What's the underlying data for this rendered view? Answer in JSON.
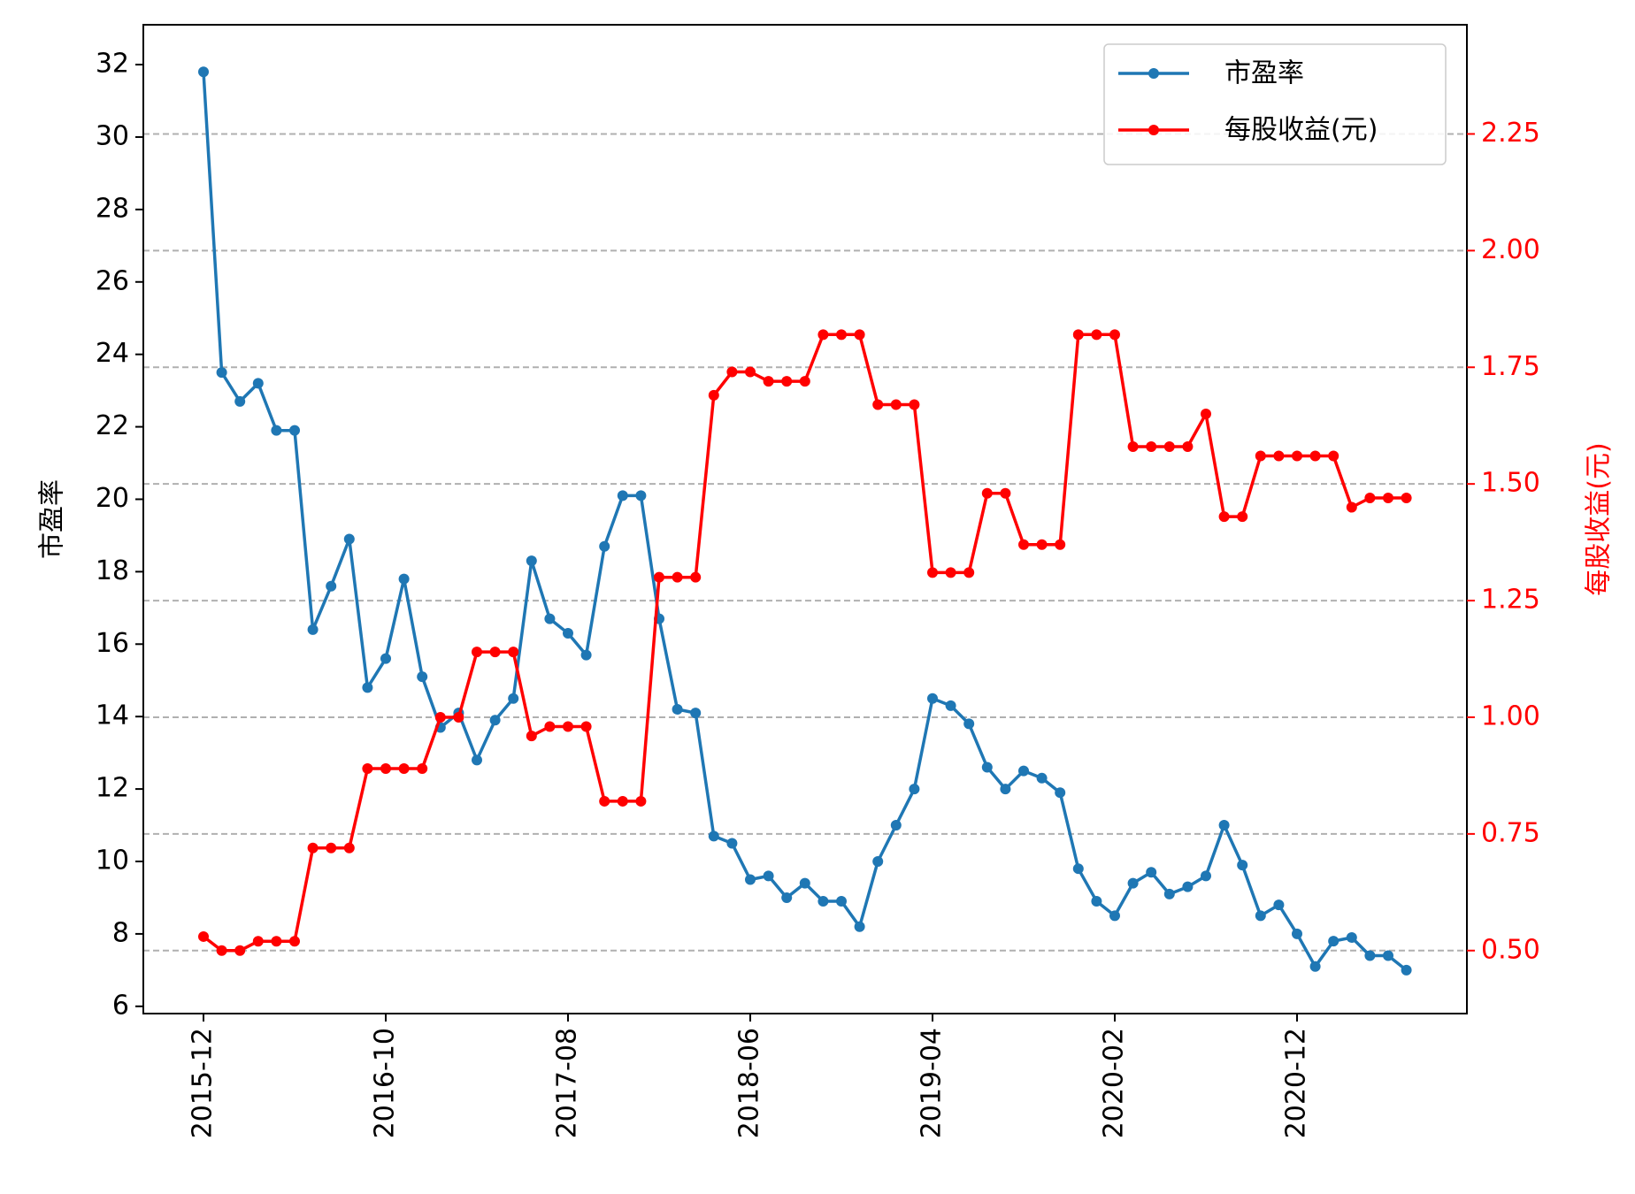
{
  "chart_data": {
    "type": "line",
    "x_dates": [
      "2015-12",
      "2016-01",
      "2016-02",
      "2016-03",
      "2016-04",
      "2016-05",
      "2016-06",
      "2016-07",
      "2016-08",
      "2016-09",
      "2016-10",
      "2016-11",
      "2016-12",
      "2017-01",
      "2017-02",
      "2017-03",
      "2017-04",
      "2017-05",
      "2017-06",
      "2017-07",
      "2017-08",
      "2017-09",
      "2017-10",
      "2017-11",
      "2017-12",
      "2018-01",
      "2018-02",
      "2018-03",
      "2018-04",
      "2018-05",
      "2018-06",
      "2018-07",
      "2018-08",
      "2018-09",
      "2018-10",
      "2018-11",
      "2018-12",
      "2019-01",
      "2019-02",
      "2019-03",
      "2019-04",
      "2019-05",
      "2019-06",
      "2019-07",
      "2019-08",
      "2019-09",
      "2019-10",
      "2019-11",
      "2019-12",
      "2020-01",
      "2020-02",
      "2020-03",
      "2020-04",
      "2020-05",
      "2020-06",
      "2020-07",
      "2020-08",
      "2020-09",
      "2020-10",
      "2020-11",
      "2020-12",
      "2021-01",
      "2021-02",
      "2021-03",
      "2021-04",
      "2021-05",
      "2021-06"
    ],
    "x_tick_labels": [
      "2015-12",
      "2016-10",
      "2017-08",
      "2018-06",
      "2019-04",
      "2020-02",
      "2020-12"
    ],
    "left_axis": {
      "label": "市盈率",
      "range": [
        5.8,
        33.1
      ],
      "ticks": [
        "6",
        "8",
        "10",
        "12",
        "14",
        "16",
        "18",
        "20",
        "22",
        "24",
        "26",
        "28",
        "30",
        "32"
      ]
    },
    "right_axis": {
      "label": "每股收益(元)",
      "range": [
        0.365,
        2.484
      ],
      "ticks": [
        "0.50",
        "0.75",
        "1.00",
        "1.25",
        "1.50",
        "1.75",
        "2.00",
        "2.25"
      ],
      "color": "#ff0000"
    },
    "grid": "horizontal dashed at right-axis ticks",
    "legend_position": "top-right",
    "series": [
      {
        "name": "市盈率",
        "axis": "left",
        "color": "#1f77b4",
        "values": [
          31.8,
          23.5,
          22.7,
          23.2,
          21.9,
          21.9,
          16.4,
          17.6,
          18.9,
          14.8,
          15.6,
          17.8,
          15.1,
          13.7,
          14.1,
          12.8,
          13.9,
          14.5,
          18.3,
          16.7,
          16.3,
          15.7,
          18.7,
          20.1,
          20.1,
          16.7,
          14.2,
          14.1,
          10.7,
          10.5,
          9.5,
          9.6,
          9.0,
          9.4,
          8.9,
          8.9,
          8.2,
          10.0,
          11.0,
          12.0,
          14.5,
          14.3,
          13.8,
          12.6,
          12.0,
          12.5,
          12.3,
          11.9,
          9.8,
          8.9,
          8.5,
          9.4,
          9.7,
          9.1,
          9.3,
          9.6,
          11.0,
          9.9,
          8.5,
          8.8,
          8.0,
          7.1,
          7.8,
          7.9,
          7.4,
          7.4,
          7.0
        ]
      },
      {
        "name": "每股收益(元)",
        "axis": "right",
        "color": "#ff0000",
        "values": [
          0.53,
          0.5,
          0.5,
          0.52,
          0.52,
          0.52,
          0.72,
          0.72,
          0.72,
          0.89,
          0.89,
          0.89,
          0.89,
          1.0,
          1.0,
          1.14,
          1.14,
          1.14,
          0.96,
          0.98,
          0.98,
          0.98,
          0.82,
          0.82,
          0.82,
          1.3,
          1.3,
          1.3,
          1.69,
          1.74,
          1.74,
          1.72,
          1.72,
          1.72,
          1.82,
          1.82,
          1.82,
          1.67,
          1.67,
          1.67,
          1.31,
          1.31,
          1.31,
          1.48,
          1.48,
          1.37,
          1.37,
          1.37,
          1.82,
          1.82,
          1.82,
          1.58,
          1.58,
          1.58,
          1.58,
          1.65,
          1.43,
          1.43,
          1.56,
          1.56,
          1.56,
          1.56,
          1.56,
          1.45,
          1.47,
          1.47,
          1.47
        ]
      }
    ]
  }
}
